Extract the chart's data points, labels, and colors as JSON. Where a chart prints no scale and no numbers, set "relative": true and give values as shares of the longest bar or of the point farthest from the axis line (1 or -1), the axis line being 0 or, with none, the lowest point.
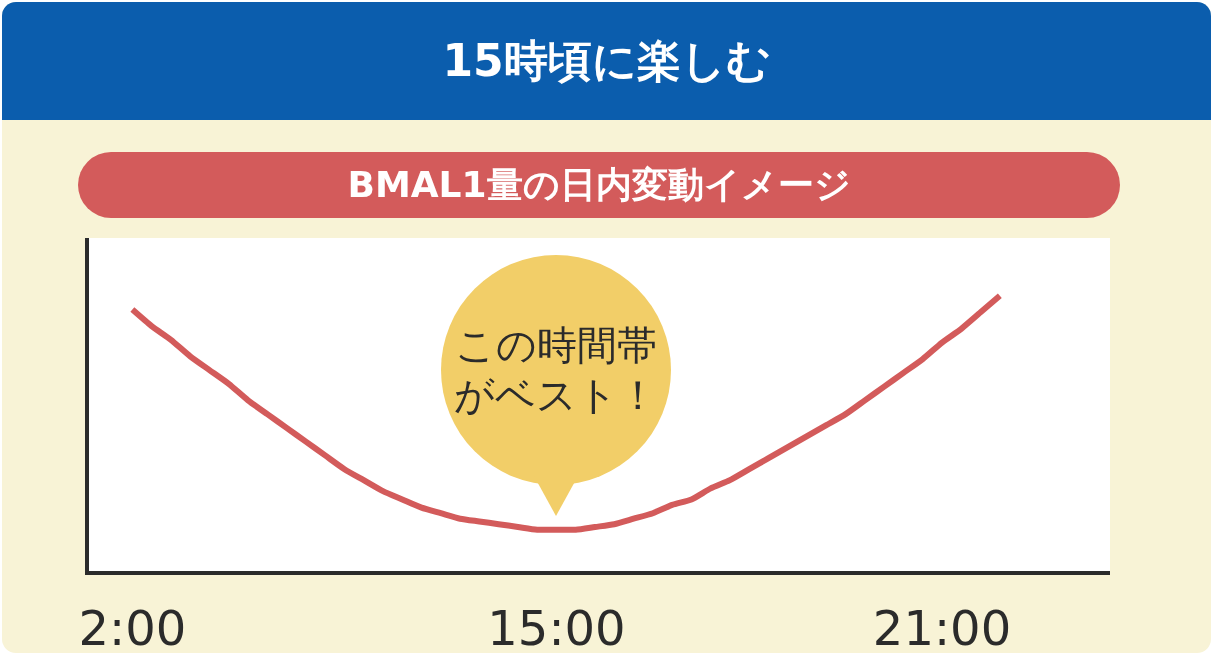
{
  "chart_data": {
    "type": "line",
    "title": "15時頃に楽しむ",
    "subtitle": "BMAL1量の日内変動イメージ",
    "relative": true,
    "categories": [
      "2:00",
      null,
      null,
      null,
      null,
      null,
      null,
      null,
      null,
      null,
      null,
      null,
      null,
      null,
      null,
      null,
      null,
      null,
      null,
      null,
      null,
      null,
      "15:00",
      null,
      null,
      null,
      null,
      null,
      null,
      null,
      null,
      null,
      null,
      null,
      null,
      null,
      null,
      null,
      null,
      null,
      null,
      null,
      "21:00",
      null,
      null,
      null
    ],
    "series": [
      {
        "color": "#d35b5b",
        "values": [
          0.95,
          0.89,
          0.84,
          0.78,
          0.73,
          0.68,
          0.62,
          0.57,
          0.52,
          0.47,
          0.42,
          0.37,
          0.33,
          0.29,
          0.26,
          0.23,
          0.21,
          0.19,
          0.18,
          0.17,
          0.16,
          0.15,
          0.15,
          0.15,
          0.16,
          0.17,
          0.19,
          0.21,
          0.24,
          0.26,
          0.3,
          0.33,
          0.37,
          0.41,
          0.45,
          0.49,
          0.53,
          0.57,
          0.62,
          0.67,
          0.72,
          0.77,
          0.83,
          0.88,
          0.94,
          1
        ]
      }
    ],
    "annotations": [
      {
        "text": "この時間帯がベスト！",
        "x": "15:00",
        "y": 0.15
      }
    ]
  }
}
